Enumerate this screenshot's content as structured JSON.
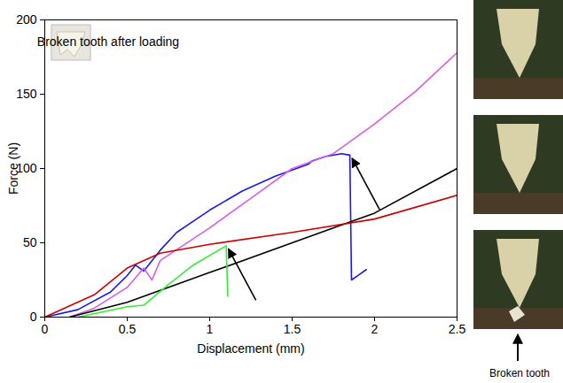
{
  "chart_data": {
    "type": "line",
    "xlabel": "Displacement (mm)",
    "ylabel": "Force (N)",
    "xlim": [
      0,
      2.5
    ],
    "ylim": [
      0,
      200
    ],
    "xticks": [
      0,
      0.5,
      1,
      1.5,
      2,
      2.5
    ],
    "yticks": [
      0,
      50,
      100,
      150,
      200
    ],
    "annotations": [
      "Broken tooth after loading",
      "Broken tooth"
    ],
    "series": [
      {
        "color": "#1a1ae6",
        "x": [
          0,
          0.2,
          0.4,
          0.5,
          0.55,
          0.6,
          0.7,
          0.8,
          1.0,
          1.2,
          1.4,
          1.6,
          1.62,
          1.7,
          1.8,
          1.85,
          1.86,
          1.9,
          1.95
        ],
        "values": [
          0,
          5,
          17,
          28,
          35,
          31,
          45,
          57,
          72,
          85,
          95,
          103,
          105,
          108,
          110,
          109,
          25,
          28,
          32
        ]
      },
      {
        "color": "#d45fe0",
        "x": [
          0.15,
          0.3,
          0.5,
          0.6,
          0.65,
          0.7,
          1.0,
          1.25,
          1.5,
          1.75,
          2.0,
          2.25,
          2.5
        ],
        "values": [
          0,
          6,
          20,
          33,
          25,
          38,
          60,
          80,
          100,
          110,
          130,
          152,
          178
        ]
      },
      {
        "color": "#000000",
        "x": [
          0.15,
          0.5,
          1.0,
          1.5,
          2.0,
          2.5
        ],
        "values": [
          0,
          10,
          30,
          50,
          70,
          100
        ]
      },
      {
        "color": "#cc0000",
        "x": [
          0,
          0.3,
          0.5,
          0.7,
          1.0,
          1.5,
          2.0,
          2.5
        ],
        "values": [
          0,
          15,
          33,
          43,
          49,
          57,
          66,
          82
        ]
      },
      {
        "color": "#33ee33",
        "x": [
          0.2,
          0.5,
          0.6,
          0.75,
          0.9,
          1.1,
          1.11
        ],
        "values": [
          0,
          7,
          8,
          22,
          35,
          48,
          14
        ]
      }
    ]
  }
}
